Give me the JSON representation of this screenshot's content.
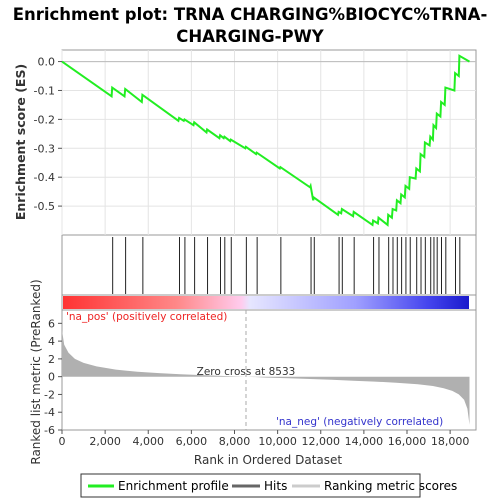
{
  "chart_data": {
    "type": "line",
    "title_lines": [
      "Enrichment plot: TRNA CHARGING%BIOCYC%TRNA-",
      "CHARGING-PWY"
    ],
    "es_panel": {
      "ylabel": "Enrichment score (ES)",
      "ylim": [
        -0.6,
        0.04
      ],
      "yticks": [
        0.0,
        -0.1,
        -0.2,
        -0.3,
        -0.4,
        -0.5
      ],
      "ytick_labels": [
        "0.0",
        "-0.1",
        "-0.2",
        "-0.3",
        "-0.4",
        "-0.5"
      ],
      "x": [
        0,
        2300,
        2330,
        2900,
        2930,
        3700,
        3730,
        5400,
        5430,
        5650,
        5680,
        6100,
        6130,
        6700,
        6730,
        7300,
        7330,
        7500,
        7530,
        7800,
        7830,
        8500,
        8530,
        9000,
        9030,
        10100,
        10130,
        11500,
        11530,
        11650,
        11680,
        12800,
        12830,
        12950,
        12980,
        13500,
        13530,
        14400,
        14430,
        14650,
        14680,
        15100,
        15130,
        15300,
        15330,
        15500,
        15530,
        15700,
        15730,
        15900,
        15930,
        16100,
        16130,
        16400,
        16430,
        16600,
        16630,
        16800,
        16830,
        17050,
        17080,
        17200,
        17230,
        17350,
        17380,
        17550,
        17580,
        17750,
        17780,
        18200,
        18230,
        18400,
        18430,
        18900
      ],
      "y": [
        0.0,
        -0.12,
        -0.09,
        -0.12,
        -0.095,
        -0.14,
        -0.115,
        -0.205,
        -0.195,
        -0.205,
        -0.2,
        -0.22,
        -0.21,
        -0.245,
        -0.235,
        -0.265,
        -0.255,
        -0.265,
        -0.26,
        -0.275,
        -0.27,
        -0.3,
        -0.295,
        -0.32,
        -0.315,
        -0.37,
        -0.365,
        -0.435,
        -0.43,
        -0.48,
        -0.47,
        -0.53,
        -0.52,
        -0.525,
        -0.51,
        -0.535,
        -0.52,
        -0.565,
        -0.55,
        -0.56,
        -0.54,
        -0.565,
        -0.53,
        -0.54,
        -0.51,
        -0.515,
        -0.48,
        -0.49,
        -0.46,
        -0.47,
        -0.43,
        -0.44,
        -0.4,
        -0.405,
        -0.37,
        -0.38,
        -0.32,
        -0.33,
        -0.28,
        -0.29,
        -0.26,
        -0.27,
        -0.22,
        -0.23,
        -0.18,
        -0.19,
        -0.14,
        -0.15,
        -0.09,
        -0.1,
        -0.04,
        -0.05,
        0.02,
        0.0
      ]
    },
    "hits": [
      2350,
      2950,
      3750,
      5450,
      5700,
      6150,
      6750,
      7350,
      7550,
      7850,
      8550,
      9050,
      10150,
      11550,
      11700,
      12850,
      13000,
      13550,
      14450,
      14700,
      15150,
      15350,
      15550,
      15750,
      15950,
      16150,
      16450,
      16650,
      16850,
      17100,
      17250,
      17400,
      17600,
      17800,
      18250,
      18450
    ],
    "rank_panel": {
      "ylabel": "Ranked list metric (PreRanked)",
      "ylim": [
        -6,
        7.5
      ],
      "yticks": [
        6,
        4,
        2,
        0,
        -2,
        -4,
        -6
      ],
      "ytick_labels": [
        "6",
        "4",
        "2",
        "0",
        "-2",
        "-4",
        "-6"
      ],
      "profile_x": [
        0,
        100,
        300,
        600,
        1000,
        1600,
        2500,
        3500,
        4500,
        5500,
        6500,
        7500,
        8533,
        9500,
        10500,
        11500,
        12500,
        13500,
        14500,
        15500,
        16500,
        17200,
        17700,
        18100,
        18400,
        18650,
        18800,
        18900
      ],
      "profile_y": [
        5.2,
        3.6,
        2.7,
        2.0,
        1.55,
        1.15,
        0.8,
        0.55,
        0.4,
        0.28,
        0.18,
        0.08,
        0.0,
        -0.1,
        -0.18,
        -0.26,
        -0.35,
        -0.45,
        -0.55,
        -0.68,
        -0.85,
        -1.05,
        -1.3,
        -1.6,
        -2.0,
        -2.6,
        -3.6,
        -5.4
      ],
      "zero_cross_label": "Zero cross at 8533",
      "zero_cross_x": 8533,
      "pos_label": "'na_pos' (positively correlated)",
      "neg_label": "'na_neg' (negatively correlated)"
    },
    "xlabel": "Rank in Ordered Dataset",
    "xlim": [
      0,
      19200
    ],
    "xticks": [
      0,
      2000,
      4000,
      6000,
      8000,
      10000,
      12000,
      14000,
      16000,
      18000
    ],
    "xtick_labels": [
      "0",
      "2,000",
      "4,000",
      "6,000",
      "8,000",
      "10,000",
      "12,000",
      "14,000",
      "16,000",
      "18,000"
    ],
    "legend": {
      "items": [
        "Enrichment profile",
        "Hits",
        "Ranking metric scores"
      ],
      "colors": [
        "#22ee22",
        "#666666",
        "#cccccc"
      ]
    },
    "colors": {
      "es_line": "#22ee22",
      "zero_line": "#bbbbbb",
      "profile_fill": "#b0b0b0",
      "pos_text": "#ee2222",
      "neg_text": "#3333cc"
    }
  }
}
